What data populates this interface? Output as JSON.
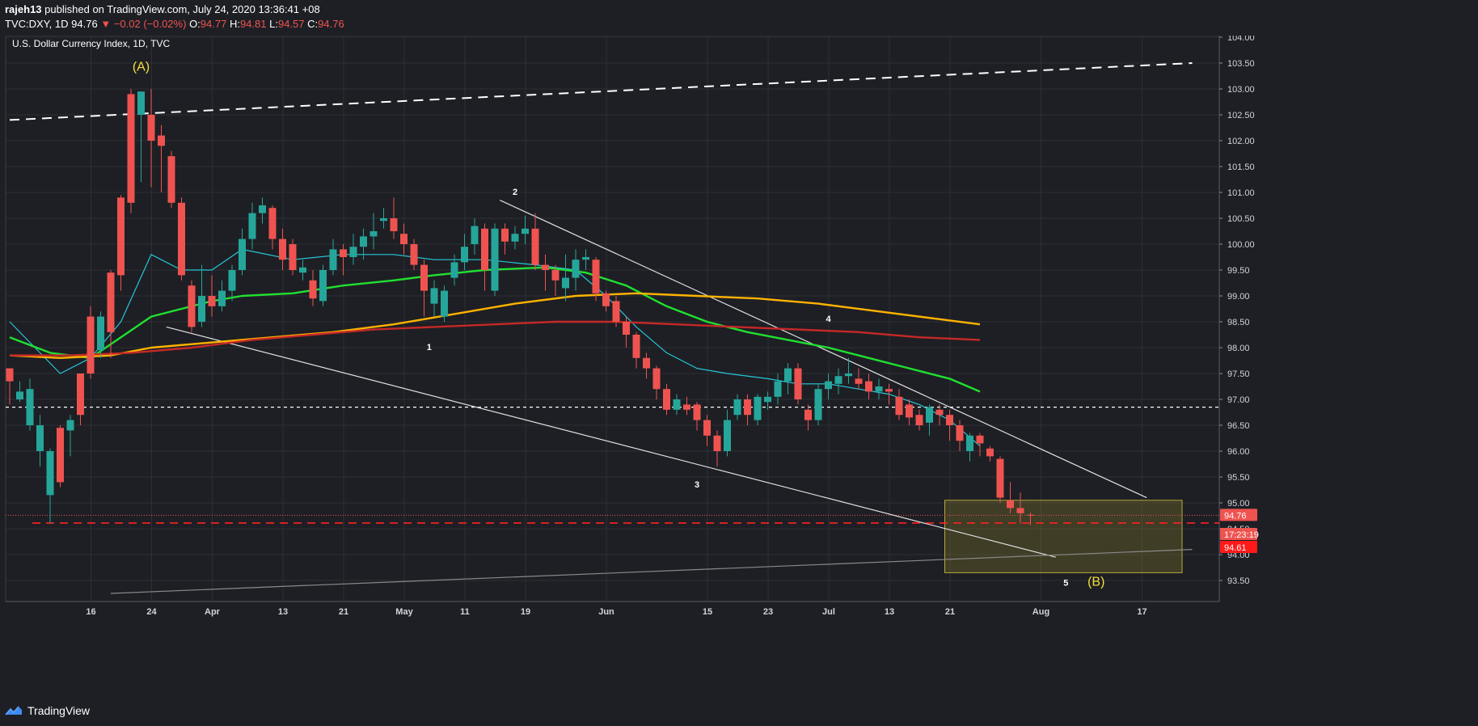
{
  "header": {
    "author": "rajeh13",
    "published_text": "published on TradingView.com, July 24, 2020 13:36:41 +08",
    "symbol": "TVC:DXY, 1D",
    "last": "94.76",
    "change": "−0.02 (−0.02%)",
    "o_label": "O:",
    "o": "94.77",
    "h_label": "H:",
    "h": "94.81",
    "l_label": "L:",
    "l": "94.57",
    "c_label": "C:",
    "c": "94.76"
  },
  "footer": {
    "brand": "TradingView"
  },
  "colors": {
    "up": "#26a69a",
    "down": "#ef5350",
    "bg": "#1e1f24"
  },
  "chart_data": {
    "type": "candlestick",
    "title": "U.S. Dollar Currency Index, 1D, TVC",
    "ylim": [
      93.2,
      104.1
    ],
    "y_ticks": [
      93.5,
      94.0,
      94.5,
      95.0,
      95.5,
      96.0,
      96.5,
      97.0,
      97.5,
      98.0,
      98.5,
      99.0,
      99.5,
      100.0,
      100.5,
      101.0,
      101.5,
      102.0,
      102.5,
      103.0,
      103.5,
      104.0
    ],
    "y_tick_labels": [
      "93.50",
      "94.00",
      "94.50",
      "95.00",
      "95.50",
      "96.00",
      "96.50",
      "97.00",
      "97.50",
      "98.00",
      "98.50",
      "99.00",
      "99.50",
      "100.00",
      "100.50",
      "101.00",
      "101.50",
      "102.00",
      "102.50",
      "103.00",
      "103.50",
      "104.00"
    ],
    "x_ticks": [
      {
        "label": "16",
        "idx": 8
      },
      {
        "label": "24",
        "idx": 14
      },
      {
        "label": "Apr",
        "idx": 20
      },
      {
        "label": "13",
        "idx": 27
      },
      {
        "label": "21",
        "idx": 33
      },
      {
        "label": "May",
        "idx": 39
      },
      {
        "label": "11",
        "idx": 45
      },
      {
        "label": "19",
        "idx": 51
      },
      {
        "label": "Jun",
        "idx": 59
      },
      {
        "label": "15",
        "idx": 69
      },
      {
        "label": "23",
        "idx": 75
      },
      {
        "label": "Jul",
        "idx": 81
      },
      {
        "label": "13",
        "idx": 87
      },
      {
        "label": "21",
        "idx": 93
      },
      {
        "label": "Aug",
        "idx": 102
      },
      {
        "label": "17",
        "idx": 112
      }
    ],
    "candles": [
      [
        97.6,
        97.35,
        97.55,
        96.9
      ],
      [
        97.0,
        97.15,
        97.35,
        96.95
      ],
      [
        96.5,
        97.2,
        97.4,
        96.4
      ],
      [
        96.0,
        96.5,
        96.7,
        95.7
      ],
      [
        95.15,
        96.0,
        96.05,
        94.6
      ],
      [
        96.45,
        95.4,
        96.5,
        95.3
      ],
      [
        96.4,
        96.6,
        96.7,
        95.9
      ],
      [
        97.5,
        96.7,
        97.5,
        96.5
      ],
      [
        98.6,
        97.5,
        98.8,
        97.4
      ],
      [
        97.95,
        98.6,
        98.7,
        97.8
      ],
      [
        99.45,
        98.3,
        99.5,
        97.8
      ],
      [
        100.9,
        99.4,
        100.95,
        99.1
      ],
      [
        102.9,
        100.8,
        103.0,
        100.6
      ],
      [
        102.5,
        102.95,
        102.95,
        101.2
      ],
      [
        102.5,
        102.0,
        103.0,
        101.1
      ],
      [
        102.1,
        101.9,
        102.3,
        101.0
      ],
      [
        101.7,
        100.8,
        101.8,
        100.7
      ],
      [
        100.8,
        99.4,
        100.9,
        99.3
      ],
      [
        99.2,
        98.4,
        99.3,
        98.3
      ],
      [
        98.5,
        99.0,
        99.6,
        98.4
      ],
      [
        99.0,
        98.8,
        99.4,
        98.6
      ],
      [
        98.8,
        99.1,
        99.3,
        98.7
      ],
      [
        99.1,
        99.5,
        99.6,
        98.9
      ],
      [
        99.5,
        100.1,
        100.3,
        99.4
      ],
      [
        100.1,
        100.6,
        100.8,
        99.9
      ],
      [
        100.6,
        100.75,
        100.9,
        100.4
      ],
      [
        100.7,
        100.1,
        100.75,
        99.9
      ],
      [
        100.1,
        99.7,
        100.3,
        99.5
      ],
      [
        100.0,
        99.5,
        100.1,
        99.4
      ],
      [
        99.45,
        99.55,
        99.7,
        99.3
      ],
      [
        99.3,
        98.95,
        99.5,
        98.8
      ],
      [
        98.9,
        99.5,
        99.6,
        98.8
      ],
      [
        99.5,
        99.9,
        100.1,
        99.4
      ],
      [
        99.9,
        99.75,
        100.0,
        99.4
      ],
      [
        99.75,
        99.95,
        100.2,
        99.6
      ],
      [
        99.95,
        100.15,
        100.3,
        99.7
      ],
      [
        100.15,
        100.25,
        100.6,
        99.9
      ],
      [
        100.45,
        100.5,
        100.7,
        100.3
      ],
      [
        100.5,
        100.25,
        100.9,
        100.1
      ],
      [
        100.2,
        100.0,
        100.4,
        99.8
      ],
      [
        100.0,
        99.6,
        100.1,
        99.5
      ],
      [
        99.6,
        99.1,
        99.7,
        98.6
      ],
      [
        98.85,
        99.15,
        99.3,
        98.6
      ],
      [
        98.6,
        99.1,
        99.2,
        98.5
      ],
      [
        99.35,
        99.65,
        99.8,
        99.2
      ],
      [
        99.65,
        99.95,
        100.2,
        99.5
      ],
      [
        100.0,
        100.35,
        100.5,
        99.8
      ],
      [
        100.3,
        99.5,
        100.4,
        99.1
      ],
      [
        99.1,
        100.3,
        100.4,
        99.0
      ],
      [
        100.3,
        100.05,
        100.4,
        99.8
      ],
      [
        100.05,
        100.2,
        100.35,
        99.9
      ],
      [
        100.2,
        100.3,
        100.55,
        100.0
      ],
      [
        100.3,
        99.6,
        100.6,
        99.5
      ],
      [
        99.6,
        99.5,
        99.8,
        99.1
      ],
      [
        99.5,
        99.3,
        99.6,
        99.0
      ],
      [
        99.15,
        99.35,
        99.8,
        98.9
      ],
      [
        99.35,
        99.7,
        99.9,
        99.1
      ],
      [
        99.7,
        99.75,
        99.9,
        99.5
      ],
      [
        99.7,
        99.05,
        99.75,
        98.9
      ],
      [
        99.05,
        98.8,
        99.1,
        98.7
      ],
      [
        98.9,
        98.5,
        99.0,
        98.4
      ],
      [
        98.5,
        98.25,
        98.6,
        98.0
      ],
      [
        98.25,
        97.8,
        98.3,
        97.6
      ],
      [
        97.8,
        97.6,
        97.9,
        97.4
      ],
      [
        97.6,
        97.2,
        97.65,
        97.0
      ],
      [
        97.2,
        96.8,
        97.3,
        96.7
      ],
      [
        96.8,
        97.0,
        97.1,
        96.7
      ],
      [
        96.9,
        96.8,
        97.05,
        96.7
      ],
      [
        96.9,
        96.6,
        96.95,
        96.4
      ],
      [
        96.6,
        96.3,
        96.7,
        96.1
      ],
      [
        96.3,
        96.0,
        96.4,
        95.7
      ],
      [
        96.0,
        96.6,
        96.8,
        95.9
      ],
      [
        96.7,
        97.0,
        97.1,
        96.6
      ],
      [
        97.0,
        96.7,
        97.1,
        96.5
      ],
      [
        96.6,
        97.05,
        97.1,
        96.5
      ],
      [
        96.95,
        97.05,
        97.15,
        96.8
      ],
      [
        97.05,
        97.35,
        97.5,
        96.9
      ],
      [
        97.35,
        97.6,
        97.7,
        97.1
      ],
      [
        97.6,
        97.0,
        97.7,
        96.9
      ],
      [
        96.8,
        96.6,
        96.9,
        96.4
      ],
      [
        96.6,
        97.2,
        97.3,
        96.5
      ],
      [
        97.2,
        97.35,
        97.5,
        97.0
      ],
      [
        97.3,
        97.45,
        97.6,
        97.1
      ],
      [
        97.45,
        97.5,
        97.8,
        97.3
      ],
      [
        97.4,
        97.3,
        97.6,
        97.2
      ],
      [
        97.35,
        97.15,
        97.5,
        97.0
      ],
      [
        97.15,
        97.25,
        97.4,
        97.0
      ],
      [
        97.2,
        97.15,
        97.3,
        96.9
      ],
      [
        97.05,
        96.7,
        97.2,
        96.6
      ],
      [
        96.9,
        96.65,
        97.0,
        96.5
      ],
      [
        96.7,
        96.5,
        96.8,
        96.4
      ],
      [
        96.55,
        96.85,
        96.9,
        96.3
      ],
      [
        96.8,
        96.7,
        96.9,
        96.5
      ],
      [
        96.7,
        96.5,
        96.8,
        96.2
      ],
      [
        96.5,
        96.2,
        96.6,
        96.0
      ],
      [
        96.0,
        96.3,
        96.35,
        95.8
      ],
      [
        96.3,
        96.15,
        96.35,
        95.9
      ],
      [
        96.05,
        95.9,
        96.1,
        95.8
      ]
    ],
    "candles_tail": [
      [
        95.85,
        95.1,
        95.9,
        95.0
      ],
      [
        95.05,
        94.9,
        95.4,
        94.8
      ],
      [
        94.9,
        94.8,
        95.2,
        94.6
      ],
      [
        94.77,
        94.76,
        94.81,
        94.57
      ]
    ],
    "ma_series": [
      {
        "name": "MA fast (cyan)",
        "color": "#26c6da",
        "points": [
          [
            0,
            98.5
          ],
          [
            5,
            97.5
          ],
          [
            8,
            97.8
          ],
          [
            11,
            98.5
          ],
          [
            14,
            99.8
          ],
          [
            17,
            99.5
          ],
          [
            20,
            99.5
          ],
          [
            23,
            99.9
          ],
          [
            28,
            99.7
          ],
          [
            33,
            99.8
          ],
          [
            38,
            99.8
          ],
          [
            42,
            99.7
          ],
          [
            47,
            99.7
          ],
          [
            52,
            99.6
          ],
          [
            56,
            99.5
          ],
          [
            59,
            99.0
          ],
          [
            62,
            98.4
          ],
          [
            65,
            97.9
          ],
          [
            68,
            97.6
          ],
          [
            71,
            97.5
          ],
          [
            75,
            97.4
          ],
          [
            78,
            97.3
          ],
          [
            81,
            97.3
          ],
          [
            84,
            97.2
          ],
          [
            87,
            97.1
          ],
          [
            90,
            96.9
          ],
          [
            93,
            96.6
          ],
          [
            96,
            96.1
          ]
        ]
      },
      {
        "name": "MA 50 (green)",
        "color": "#20e030",
        "points": [
          [
            0,
            98.2
          ],
          [
            4,
            97.9
          ],
          [
            8,
            97.8
          ],
          [
            11,
            98.2
          ],
          [
            14,
            98.6
          ],
          [
            17,
            98.75
          ],
          [
            20,
            98.9
          ],
          [
            23,
            99.0
          ],
          [
            28,
            99.05
          ],
          [
            33,
            99.2
          ],
          [
            38,
            99.3
          ],
          [
            42,
            99.4
          ],
          [
            47,
            99.5
          ],
          [
            53,
            99.55
          ],
          [
            57,
            99.45
          ],
          [
            61,
            99.2
          ],
          [
            65,
            98.8
          ],
          [
            69,
            98.5
          ],
          [
            73,
            98.3
          ],
          [
            77,
            98.15
          ],
          [
            81,
            98.0
          ],
          [
            85,
            97.8
          ],
          [
            89,
            97.6
          ],
          [
            93,
            97.4
          ],
          [
            96,
            97.15
          ]
        ]
      },
      {
        "name": "MA 100 (orange)",
        "color": "#ffb300",
        "points": [
          [
            0,
            97.85
          ],
          [
            5,
            97.8
          ],
          [
            10,
            97.85
          ],
          [
            14,
            98.0
          ],
          [
            20,
            98.1
          ],
          [
            26,
            98.2
          ],
          [
            32,
            98.3
          ],
          [
            38,
            98.45
          ],
          [
            44,
            98.65
          ],
          [
            50,
            98.85
          ],
          [
            56,
            99.0
          ],
          [
            62,
            99.05
          ],
          [
            68,
            99.0
          ],
          [
            74,
            98.95
          ],
          [
            80,
            98.85
          ],
          [
            86,
            98.7
          ],
          [
            92,
            98.55
          ],
          [
            96,
            98.45
          ]
        ]
      },
      {
        "name": "MA 200 (red)",
        "color": "#c62828",
        "points": [
          [
            0,
            97.85
          ],
          [
            6,
            97.85
          ],
          [
            12,
            97.9
          ],
          [
            18,
            98.0
          ],
          [
            24,
            98.15
          ],
          [
            30,
            98.25
          ],
          [
            36,
            98.35
          ],
          [
            42,
            98.4
          ],
          [
            48,
            98.45
          ],
          [
            54,
            98.5
          ],
          [
            60,
            98.5
          ],
          [
            66,
            98.45
          ],
          [
            72,
            98.4
          ],
          [
            78,
            98.35
          ],
          [
            84,
            98.3
          ],
          [
            90,
            98.2
          ],
          [
            96,
            98.15
          ]
        ]
      }
    ],
    "trendlines": [
      {
        "name": "upper wedge line",
        "color": "#e0e0e0",
        "from": [
          48.5,
          100.85
        ],
        "to": [
          112.5,
          95.1
        ]
      },
      {
        "name": "lower wedge line",
        "color": "#e0e0e0",
        "from": [
          15.5,
          98.4
        ],
        "to": [
          103.5,
          93.95
        ]
      },
      {
        "name": "long grey support",
        "color": "#8a8a8a",
        "from": [
          10,
          93.25
        ],
        "to": [
          117,
          94.1
        ]
      },
      {
        "name": "dashed resistance",
        "color": "#ffffff",
        "dash": true,
        "from": [
          0,
          102.4
        ],
        "to": [
          117,
          103.5
        ]
      }
    ],
    "hlines": [
      {
        "name": "dotted 96.85",
        "value": 96.85,
        "color": "#ffffff",
        "style": "dotted"
      },
      {
        "name": "red dashed 94.61",
        "value": 94.61,
        "color": "#ff2222",
        "style": "dashed"
      },
      {
        "name": "last price 94.76",
        "value": 94.76,
        "color": "#ef5350",
        "style": "dotted-thin"
      }
    ],
    "target_box": {
      "from_idx": 93,
      "to_idx": 116,
      "top": 95.05,
      "bottom": 93.65
    },
    "wave_labels": [
      {
        "text": "(A)",
        "idx": 13,
        "price": 103.35,
        "color": "#f2e03c"
      },
      {
        "text": "1",
        "idx": 41.5,
        "price": 97.95,
        "color": "#ffffff"
      },
      {
        "text": "2",
        "idx": 50,
        "price": 100.95,
        "color": "#ffffff"
      },
      {
        "text": "3",
        "idx": 68,
        "price": 95.3,
        "color": "#ffffff"
      },
      {
        "text": "4",
        "idx": 81,
        "price": 98.5,
        "color": "#ffffff"
      },
      {
        "text": "5",
        "idx": 104.5,
        "price": 93.4,
        "color": "#ffffff"
      },
      {
        "text": "(B)",
        "idx": 107.5,
        "price": 93.4,
        "color": "#f2e03c"
      }
    ],
    "price_tags": [
      {
        "text": "94.76",
        "value": 94.76,
        "color": "#ef5350"
      },
      {
        "text": "17:23:19",
        "value": 94.61,
        "color": "#ef5350",
        "offset": 14
      },
      {
        "text": "94.61",
        "value": 94.61,
        "color": "#ff1a1a",
        "offset": 30
      }
    ]
  }
}
